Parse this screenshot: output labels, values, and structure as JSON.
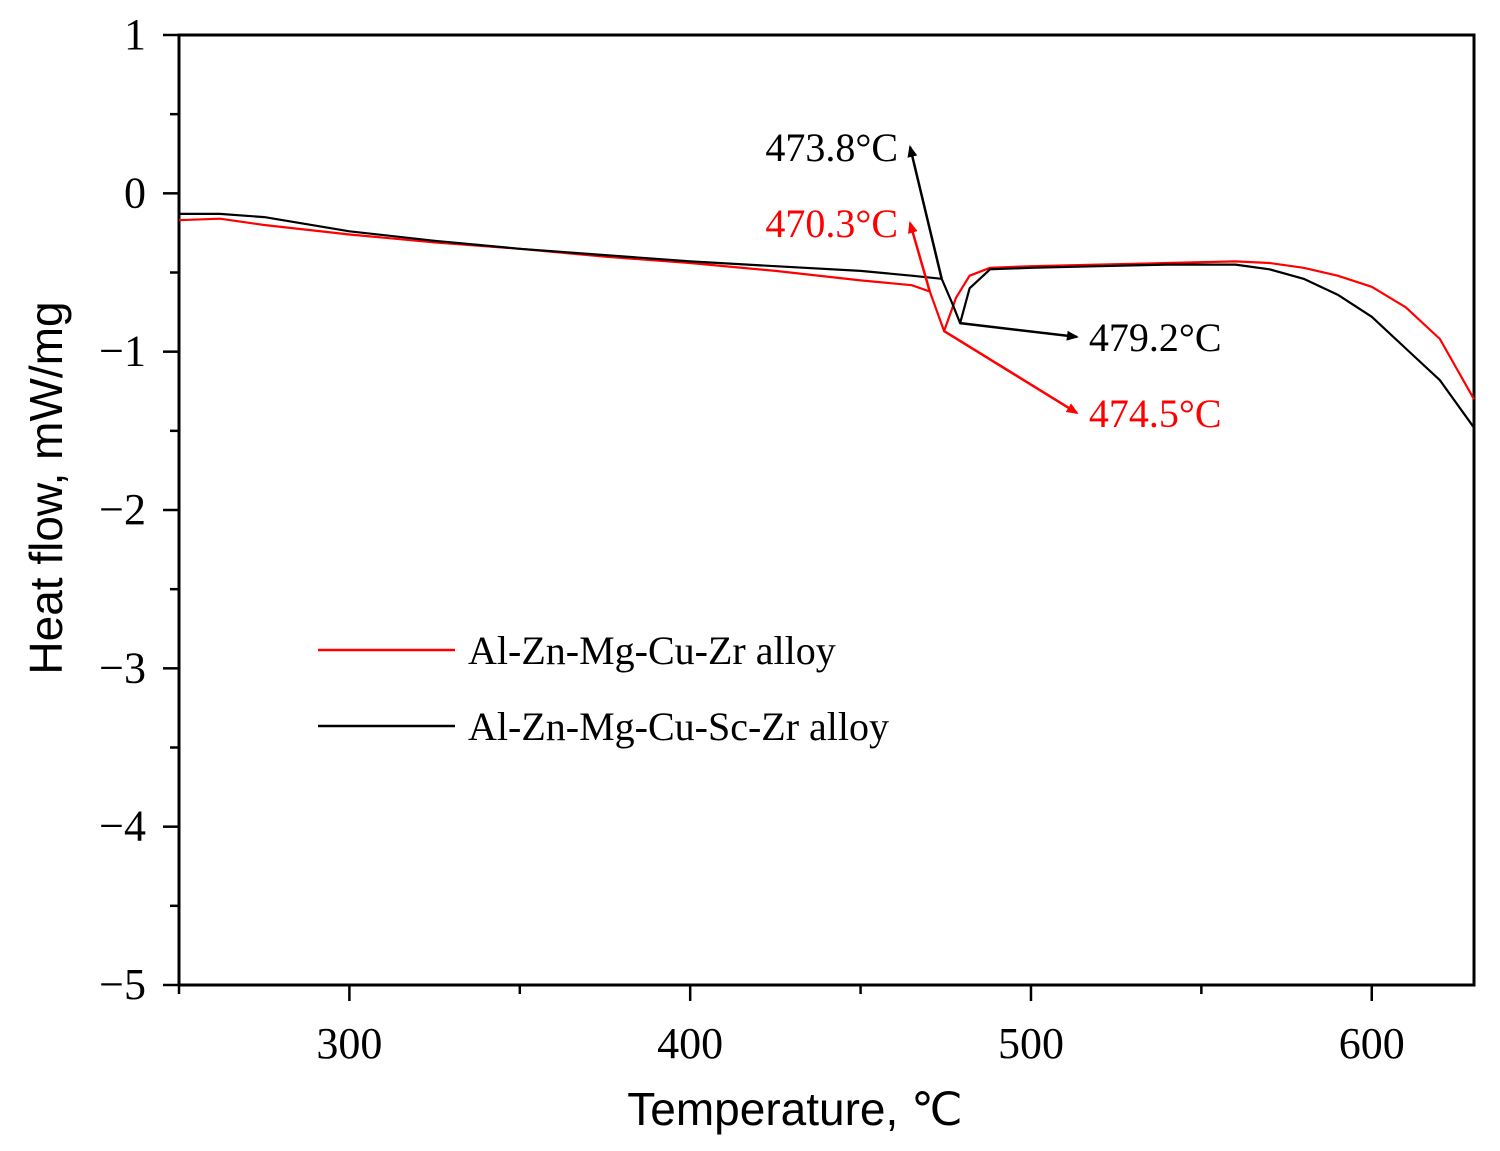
{
  "chart_data": {
    "type": "line",
    "xlabel": "Temperature, ℃",
    "ylabel": "Heat flow, mW/mg",
    "xlim": [
      250,
      630
    ],
    "ylim": [
      -5,
      1
    ],
    "x_ticks": [
      300,
      400,
      500,
      600
    ],
    "x_tick_labels": [
      "300",
      "400",
      "500",
      "600"
    ],
    "y_ticks": [
      1,
      0,
      -1,
      -2,
      -3,
      -4,
      -5
    ],
    "y_tick_labels": [
      "1",
      "0",
      "−1",
      "−2",
      "−3",
      "−4",
      "−5"
    ],
    "grid": false,
    "legend_position": "lower-left",
    "series": [
      {
        "name": "Al-Zn-Mg-Cu-Zr alloy",
        "color": "#ff0000",
        "x": [
          250,
          262,
          275,
          300,
          325,
          350,
          375,
          400,
          425,
          450,
          465,
          470.3,
          474.5,
          478,
          482,
          488,
          500,
          520,
          540,
          560,
          570,
          580,
          590,
          600,
          610,
          620,
          630
        ],
        "y": [
          -0.17,
          -0.16,
          -0.2,
          -0.26,
          -0.31,
          -0.35,
          -0.4,
          -0.44,
          -0.49,
          -0.55,
          -0.58,
          -0.62,
          -0.87,
          -0.66,
          -0.52,
          -0.47,
          -0.46,
          -0.45,
          -0.44,
          -0.43,
          -0.44,
          -0.47,
          -0.52,
          -0.59,
          -0.72,
          -0.92,
          -1.3
        ]
      },
      {
        "name": "Al-Zn-Mg-Cu-Sc-Zr alloy",
        "color": "#000000",
        "x": [
          250,
          262,
          275,
          300,
          325,
          350,
          375,
          400,
          425,
          450,
          465,
          473.8,
          477,
          479.2,
          482,
          488,
          500,
          520,
          540,
          560,
          570,
          580,
          590,
          600,
          610,
          620,
          630
        ],
        "y": [
          -0.13,
          -0.13,
          -0.15,
          -0.24,
          -0.3,
          -0.35,
          -0.39,
          -0.43,
          -0.46,
          -0.49,
          -0.52,
          -0.54,
          -0.7,
          -0.82,
          -0.6,
          -0.48,
          -0.47,
          -0.46,
          -0.45,
          -0.45,
          -0.48,
          -0.54,
          -0.64,
          -0.78,
          -0.98,
          -1.18,
          -1.48
        ]
      }
    ],
    "annotations": [
      {
        "text": "473.8°C",
        "color": "#000000",
        "point": [
          473.8,
          -0.54
        ],
        "label_at": [
          461,
          0.23
        ],
        "anchor": "end"
      },
      {
        "text": "470.3°C",
        "color": "#ff0000",
        "point": [
          470.3,
          -0.62
        ],
        "label_at": [
          461,
          -0.25
        ],
        "anchor": "end"
      },
      {
        "text": "479.2°C",
        "color": "#000000",
        "point": [
          479.2,
          -0.82
        ],
        "label_at": [
          517,
          -0.97
        ],
        "anchor": "start"
      },
      {
        "text": "474.5°C",
        "color": "#ff0000",
        "point": [
          474.5,
          -0.87
        ],
        "label_at": [
          517,
          -1.45
        ],
        "anchor": "start"
      }
    ]
  }
}
